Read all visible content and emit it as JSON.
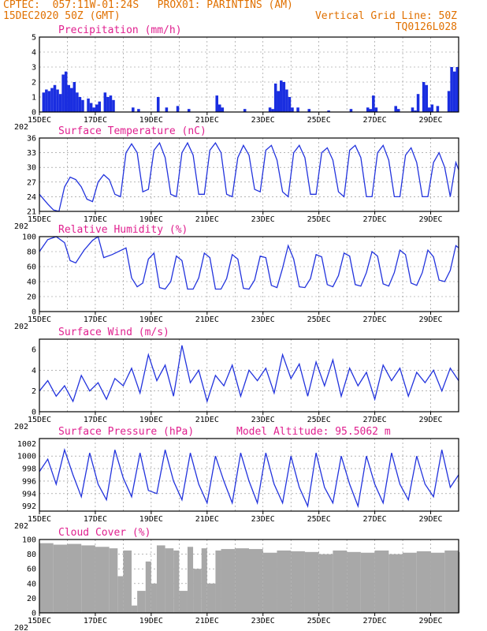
{
  "header": {
    "line1": "CPTEC:  057:11W-01:24S   PROX01: PARINTINS (AM)",
    "line2": "15DEC2020 50Z (GMT)",
    "right2": "Vertical Grid Line: 50Z",
    "right3": "TQ0126L028"
  },
  "x_ticks": [
    "15DEC",
    "17DEC",
    "19DEC",
    "21DEC",
    "23DEC",
    "25DEC",
    "27DEC",
    "29DEC"
  ],
  "year_fragment": "202",
  "colors": {
    "line": "#2233dd",
    "bar": "#1a2ee0",
    "cloud": "#a8a8a8",
    "header": "#e07000",
    "title": "#e0208f"
  },
  "chart_data": [
    {
      "type": "bar",
      "title": "Precipitation (mm/h)",
      "ylim": [
        0,
        5
      ],
      "yticks": [
        "0",
        "1",
        "2",
        "3",
        "4",
        "5"
      ],
      "x_range_days": [
        0,
        15
      ],
      "x": [
        0.1,
        0.2,
        0.3,
        0.4,
        0.5,
        0.6,
        0.7,
        0.8,
        0.9,
        1.0,
        1.1,
        1.2,
        1.3,
        1.4,
        1.5,
        1.7,
        1.8,
        1.9,
        2.0,
        2.1,
        2.3,
        2.4,
        2.5,
        2.6,
        3.3,
        3.5,
        4.2,
        4.5,
        4.9,
        5.3,
        6.3,
        6.4,
        6.5,
        7.3,
        8.2,
        8.3,
        8.4,
        8.5,
        8.6,
        8.7,
        8.8,
        8.9,
        9.0,
        9.2,
        9.6,
        10.3,
        11.1,
        11.7,
        11.8,
        11.9,
        12.0,
        12.7,
        12.8,
        13.3,
        13.4,
        13.5,
        13.7,
        13.8,
        13.9,
        14.0,
        14.2,
        14.6,
        14.7,
        14.8,
        14.9
      ],
      "values": [
        1.3,
        1.5,
        1.4,
        1.6,
        1.8,
        1.5,
        1.2,
        2.5,
        2.7,
        1.8,
        1.6,
        2.0,
        1.3,
        1.0,
        0.8,
        0.9,
        0.6,
        0.3,
        0.5,
        0.7,
        1.3,
        1.0,
        1.1,
        0.8,
        0.3,
        0.2,
        1.0,
        0.3,
        0.4,
        0.2,
        1.1,
        0.5,
        0.3,
        0.2,
        0.3,
        0.2,
        1.9,
        1.4,
        2.1,
        2.0,
        1.5,
        1.0,
        0.3,
        0.3,
        0.2,
        0.1,
        0.2,
        0.3,
        0.2,
        1.1,
        0.3,
        0.4,
        0.2,
        0.3,
        0.1,
        1.2,
        2.0,
        1.8,
        0.3,
        0.5,
        0.4,
        1.4,
        3.0,
        2.7,
        3.0
      ]
    },
    {
      "type": "line",
      "title": "Surface Temperature (nC)",
      "ylim": [
        21,
        36
      ],
      "yticks": [
        "21",
        "24",
        "27",
        "30",
        "33",
        "36"
      ],
      "x": [
        0,
        0.3,
        0.5,
        0.7,
        0.9,
        1.1,
        1.3,
        1.5,
        1.7,
        1.9,
        2.1,
        2.3,
        2.5,
        2.7,
        2.9,
        3.1,
        3.3,
        3.5,
        3.7,
        3.9,
        4.1,
        4.3,
        4.5,
        4.7,
        4.9,
        5.1,
        5.3,
        5.5,
        5.7,
        5.9,
        6.1,
        6.3,
        6.5,
        6.7,
        6.9,
        7.1,
        7.3,
        7.5,
        7.7,
        7.9,
        8.1,
        8.3,
        8.5,
        8.7,
        8.9,
        9.1,
        9.3,
        9.5,
        9.7,
        9.9,
        10.1,
        10.3,
        10.5,
        10.7,
        10.9,
        11.1,
        11.3,
        11.5,
        11.7,
        11.9,
        12.1,
        12.3,
        12.5,
        12.7,
        12.9,
        13.1,
        13.3,
        13.5,
        13.7,
        13.9,
        14.1,
        14.3,
        14.5,
        14.7,
        14.9,
        15.0
      ],
      "values": [
        24.5,
        22.5,
        21.3,
        21.0,
        26.0,
        28.0,
        27.5,
        26.0,
        23.5,
        23.0,
        27.0,
        28.5,
        27.5,
        24.5,
        24.0,
        33.0,
        34.8,
        33.0,
        25.0,
        25.5,
        33.5,
        35.0,
        32.0,
        24.5,
        24.0,
        33.0,
        35.0,
        32.5,
        24.5,
        24.5,
        33.5,
        35.0,
        33.0,
        24.5,
        24.0,
        32.0,
        34.5,
        32.5,
        25.5,
        25.0,
        33.5,
        34.5,
        31.5,
        25.0,
        24.0,
        33.0,
        34.5,
        32.0,
        24.5,
        24.5,
        33.0,
        34.0,
        31.5,
        25.0,
        24.0,
        33.5,
        34.5,
        32.0,
        24.0,
        24.0,
        33.0,
        34.5,
        31.5,
        24.0,
        24.0,
        32.5,
        34.0,
        31.0,
        24.0,
        24.0,
        31.0,
        33.0,
        30.0,
        24.0,
        31.0,
        29.5
      ]
    },
    {
      "type": "line",
      "title": "Relative Humidity (%)",
      "ylim": [
        0,
        100
      ],
      "yticks": [
        "0",
        "20",
        "40",
        "60",
        "80",
        "100"
      ],
      "x": [
        0,
        0.3,
        0.6,
        0.9,
        1.1,
        1.3,
        1.6,
        1.9,
        2.1,
        2.3,
        2.6,
        3.1,
        3.3,
        3.5,
        3.7,
        3.9,
        4.1,
        4.3,
        4.5,
        4.7,
        4.9,
        5.1,
        5.3,
        5.5,
        5.7,
        5.9,
        6.1,
        6.3,
        6.5,
        6.7,
        6.9,
        7.1,
        7.3,
        7.5,
        7.7,
        7.9,
        8.1,
        8.3,
        8.5,
        8.7,
        8.9,
        9.1,
        9.3,
        9.5,
        9.7,
        9.9,
        10.1,
        10.3,
        10.5,
        10.7,
        10.9,
        11.1,
        11.3,
        11.5,
        11.7,
        11.9,
        12.1,
        12.3,
        12.5,
        12.7,
        12.9,
        13.1,
        13.3,
        13.5,
        13.7,
        13.9,
        14.1,
        14.3,
        14.5,
        14.7,
        14.9,
        15.0
      ],
      "values": [
        80,
        96,
        100,
        92,
        68,
        65,
        82,
        95,
        100,
        72,
        76,
        85,
        45,
        33,
        38,
        70,
        78,
        32,
        30,
        40,
        74,
        68,
        30,
        30,
        45,
        78,
        72,
        30,
        30,
        44,
        76,
        70,
        31,
        30,
        42,
        74,
        72,
        35,
        32,
        58,
        88,
        70,
        33,
        32,
        44,
        76,
        73,
        36,
        33,
        48,
        78,
        74,
        36,
        34,
        52,
        80,
        74,
        37,
        34,
        52,
        82,
        76,
        38,
        35,
        52,
        82,
        73,
        42,
        40,
        55,
        88,
        85
      ]
    },
    {
      "type": "line",
      "title": "Surface Wind (m/s)",
      "ylim": [
        0,
        7
      ],
      "yticks": [
        "0",
        "2",
        "4",
        "6"
      ],
      "x": [
        0,
        0.3,
        0.6,
        0.9,
        1.2,
        1.5,
        1.8,
        2.1,
        2.4,
        2.7,
        3.0,
        3.3,
        3.6,
        3.9,
        4.2,
        4.5,
        4.8,
        5.1,
        5.4,
        5.7,
        6.0,
        6.3,
        6.6,
        6.9,
        7.2,
        7.5,
        7.8,
        8.1,
        8.4,
        8.7,
        9.0,
        9.3,
        9.6,
        9.9,
        10.2,
        10.5,
        10.8,
        11.1,
        11.4,
        11.7,
        12.0,
        12.3,
        12.6,
        12.9,
        13.2,
        13.5,
        13.8,
        14.1,
        14.4,
        14.7,
        15.0
      ],
      "values": [
        2.0,
        3.0,
        1.5,
        2.5,
        1.0,
        3.5,
        2.0,
        2.8,
        1.2,
        3.2,
        2.5,
        4.2,
        1.8,
        5.5,
        3.0,
        4.5,
        1.5,
        6.4,
        2.8,
        4.0,
        1.0,
        3.5,
        2.5,
        4.5,
        1.5,
        4.0,
        3.0,
        4.2,
        1.8,
        5.5,
        3.2,
        4.6,
        1.5,
        4.8,
        2.5,
        5.0,
        1.5,
        4.2,
        2.5,
        3.8,
        1.2,
        4.5,
        3.0,
        4.2,
        1.5,
        3.8,
        2.8,
        4.0,
        2.0,
        4.2,
        3.0
      ]
    },
    {
      "type": "line",
      "title": "Surface Pressure (hPa)",
      "annotation": "Model Altitude: 95.5062  m",
      "ylim": [
        991.2,
        1002.8
      ],
      "yticks": [
        "992",
        "994",
        "996",
        "998",
        "1000",
        "1002"
      ],
      "x": [
        0,
        0.3,
        0.6,
        0.9,
        1.2,
        1.5,
        1.8,
        2.1,
        2.4,
        2.7,
        3.0,
        3.3,
        3.6,
        3.9,
        4.2,
        4.5,
        4.8,
        5.1,
        5.4,
        5.7,
        6.0,
        6.3,
        6.6,
        6.9,
        7.2,
        7.5,
        7.8,
        8.1,
        8.4,
        8.7,
        9.0,
        9.3,
        9.6,
        9.9,
        10.2,
        10.5,
        10.8,
        11.1,
        11.4,
        11.7,
        12.0,
        12.3,
        12.6,
        12.9,
        13.2,
        13.5,
        13.8,
        14.1,
        14.4,
        14.7,
        15.0
      ],
      "values": [
        997.5,
        999.5,
        995.5,
        1001.0,
        997.0,
        993.5,
        1000.5,
        995.5,
        993.0,
        1001.0,
        996.5,
        993.5,
        1000.5,
        994.5,
        994.0,
        1001.0,
        996.0,
        993.0,
        1000.5,
        995.5,
        992.5,
        1000.0,
        996.0,
        992.5,
        1000.5,
        996.0,
        992.5,
        1000.5,
        995.5,
        992.5,
        1000.0,
        995.0,
        992.0,
        1000.5,
        995.0,
        992.5,
        1000.0,
        995.5,
        992.0,
        1000.0,
        995.5,
        992.5,
        1000.5,
        995.5,
        993.0,
        1000.0,
        995.5,
        993.5,
        1001.0,
        995.0,
        997.0
      ]
    },
    {
      "type": "area",
      "title": "Cloud Cover (%)",
      "ylim": [
        0,
        100
      ],
      "yticks": [
        "0",
        "20",
        "40",
        "60",
        "80",
        "100"
      ],
      "x": [
        0,
        0.5,
        1.0,
        1.5,
        2.0,
        2.5,
        2.8,
        3.0,
        3.3,
        3.5,
        3.8,
        4.0,
        4.2,
        4.5,
        4.8,
        5.0,
        5.3,
        5.5,
        5.8,
        6.0,
        6.3,
        6.5,
        7.0,
        7.5,
        8.0,
        8.5,
        9.0,
        9.5,
        10.0,
        10.5,
        11.0,
        11.5,
        12.0,
        12.5,
        13.0,
        13.5,
        14.0,
        14.5,
        15.0
      ],
      "values": [
        95,
        93,
        94,
        92,
        90,
        88,
        50,
        85,
        10,
        30,
        70,
        40,
        92,
        88,
        85,
        30,
        90,
        60,
        88,
        40,
        85,
        87,
        88,
        87,
        82,
        85,
        84,
        83,
        80,
        85,
        83,
        82,
        85,
        80,
        82,
        84,
        82,
        85,
        83
      ]
    }
  ]
}
